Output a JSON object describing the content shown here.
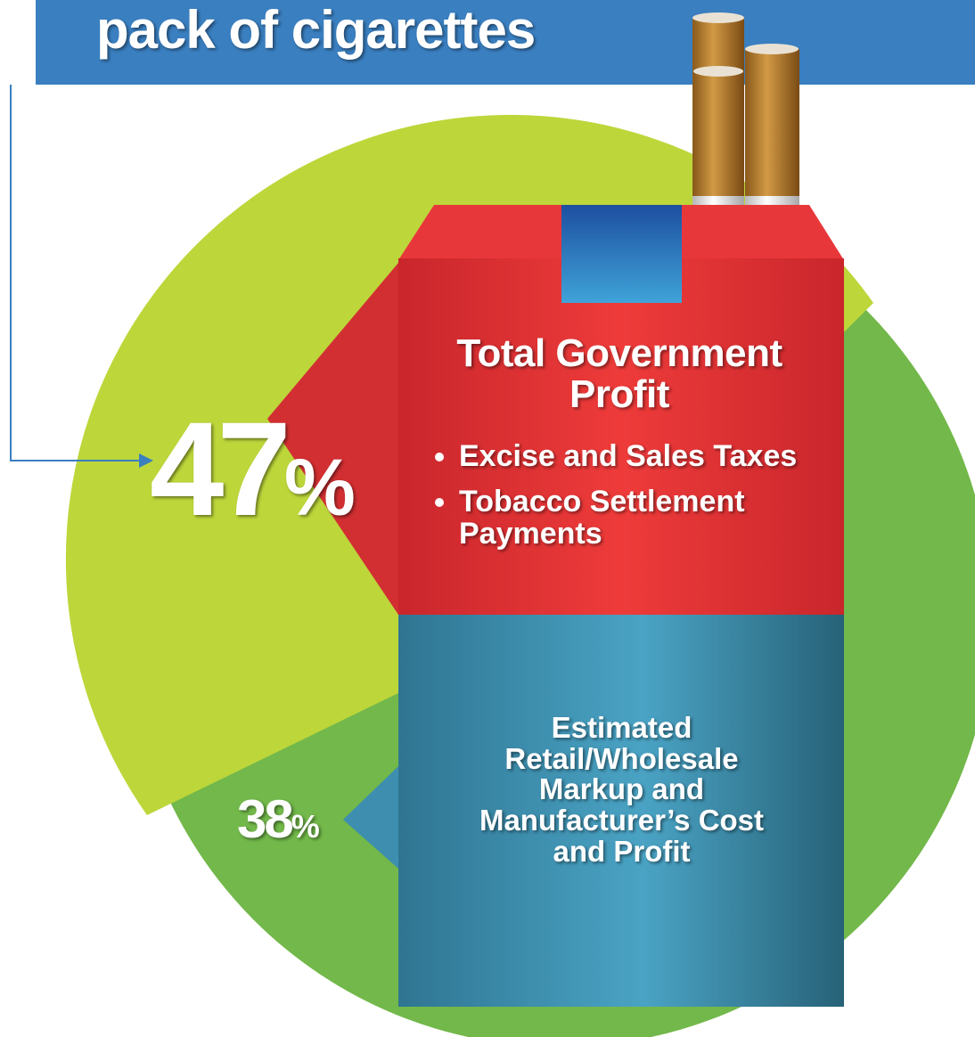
{
  "header": {
    "title": "pack of cigarettes"
  },
  "government": {
    "percent": {
      "number": "47",
      "unit": "%"
    },
    "heading": "Total Government Profit",
    "bullets": [
      "Excise and Sales Taxes",
      "Tobacco Settlement Payments"
    ]
  },
  "industry": {
    "percent": {
      "number": "38",
      "unit": "%"
    },
    "label": "Estimated Retail/Wholesale Markup and Manufacturer’s Cost and Profit"
  }
}
